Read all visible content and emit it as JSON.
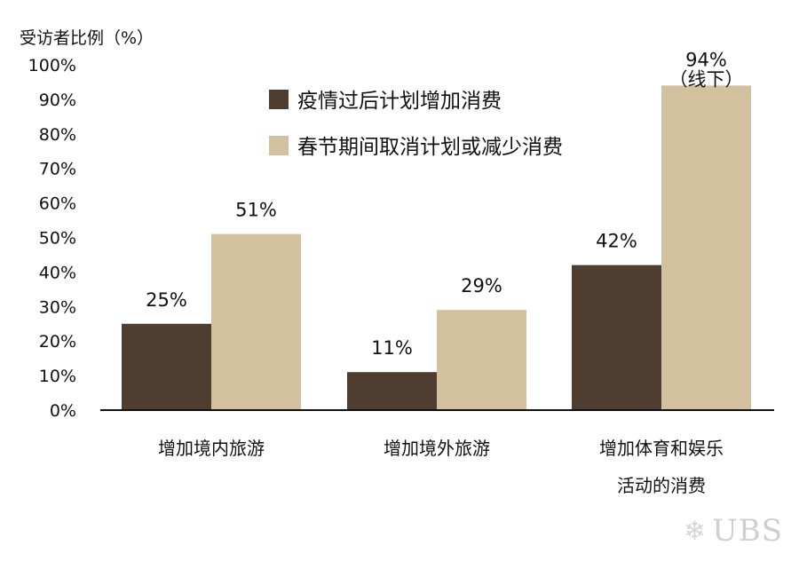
{
  "chart_data": {
    "type": "bar",
    "ylabel": "受访者比例（%）",
    "ylim": [
      0,
      100
    ],
    "yticks": [
      "0%",
      "10%",
      "20%",
      "30%",
      "40%",
      "50%",
      "60%",
      "70%",
      "80%",
      "90%",
      "100%"
    ],
    "categories": [
      [
        "增加境内旅游"
      ],
      [
        "增加境外旅游"
      ],
      [
        "增加体育和娱乐",
        "活动的消费"
      ]
    ],
    "series": [
      {
        "name": "疫情过后计划增加消费",
        "color": "#4f3e30",
        "values": [
          25,
          11,
          42
        ],
        "labels": [
          "25%",
          "11%",
          "42%"
        ]
      },
      {
        "name": "春节期间取消计划或减少消费",
        "color": "#d3c09e",
        "values": [
          51,
          29,
          94
        ],
        "labels": [
          "51%",
          "29%",
          "94%"
        ]
      }
    ],
    "annotation": {
      "series": 1,
      "index": 2,
      "text": "（线下）"
    },
    "legend_position": "top-center"
  },
  "watermark": {
    "text": "UBS",
    "icon": "keys-icon"
  }
}
